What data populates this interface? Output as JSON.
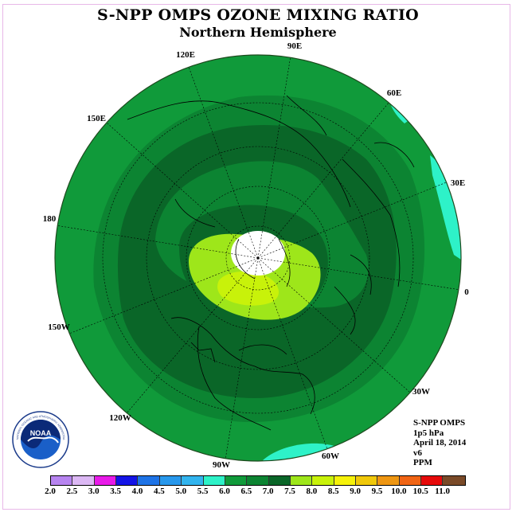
{
  "title": "S-NPP OMPS OZONE MIXING RATIO",
  "subtitle": "Northern Hemisphere",
  "longitude_labels": {
    "lon_90e": "90E",
    "lon_60e": "60E",
    "lon_30e": "30E",
    "lon_0": "0",
    "lon_30w": "30W",
    "lon_60w": "60W",
    "lon_90w": "90W",
    "lon_120w": "120W",
    "lon_150w": "150W",
    "lon_180": "180",
    "lon_150e": "150E",
    "lon_120e": "120E"
  },
  "info": {
    "instrument": "S-NPP OMPS",
    "level": "1p5 hPa",
    "date": "April 18, 2014",
    "version": "v6",
    "units": "PPM"
  },
  "logo": {
    "text": "NOAA",
    "ring_text": "NATIONAL OCEANIC AND ATMOSPHERIC ADMINISTRATION · U.S. DEPARTMENT OF COMMERCE"
  },
  "colorbar": {
    "colors": [
      "#b784f0",
      "#dcb8f4",
      "#e81ae8",
      "#1414e6",
      "#1e73e6",
      "#2898ec",
      "#32b4ee",
      "#2ef2c8",
      "#109a3a",
      "#0c8432",
      "#0a6628",
      "#9ee61a",
      "#c8f20a",
      "#f6f20a",
      "#f0c80a",
      "#ee9612",
      "#f06414",
      "#e60a0a",
      "#7a4a28"
    ],
    "ticks": [
      "2.0",
      "2.5",
      "3.0",
      "3.5",
      "4.0",
      "4.5",
      "5.0",
      "5.5",
      "6.0",
      "6.5",
      "7.0",
      "7.5",
      "8.0",
      "8.5",
      "9.0",
      "9.5",
      "10.0",
      "10.5",
      "11.0"
    ]
  },
  "colors": {
    "level_6_0": "#109a3a",
    "level_6_5": "#0c8432",
    "level_7_0": "#0a6628",
    "level_7_5": "#9ee61a",
    "level_8_0": "#c8f20a",
    "level_5_5": "#2ef2c8"
  }
}
